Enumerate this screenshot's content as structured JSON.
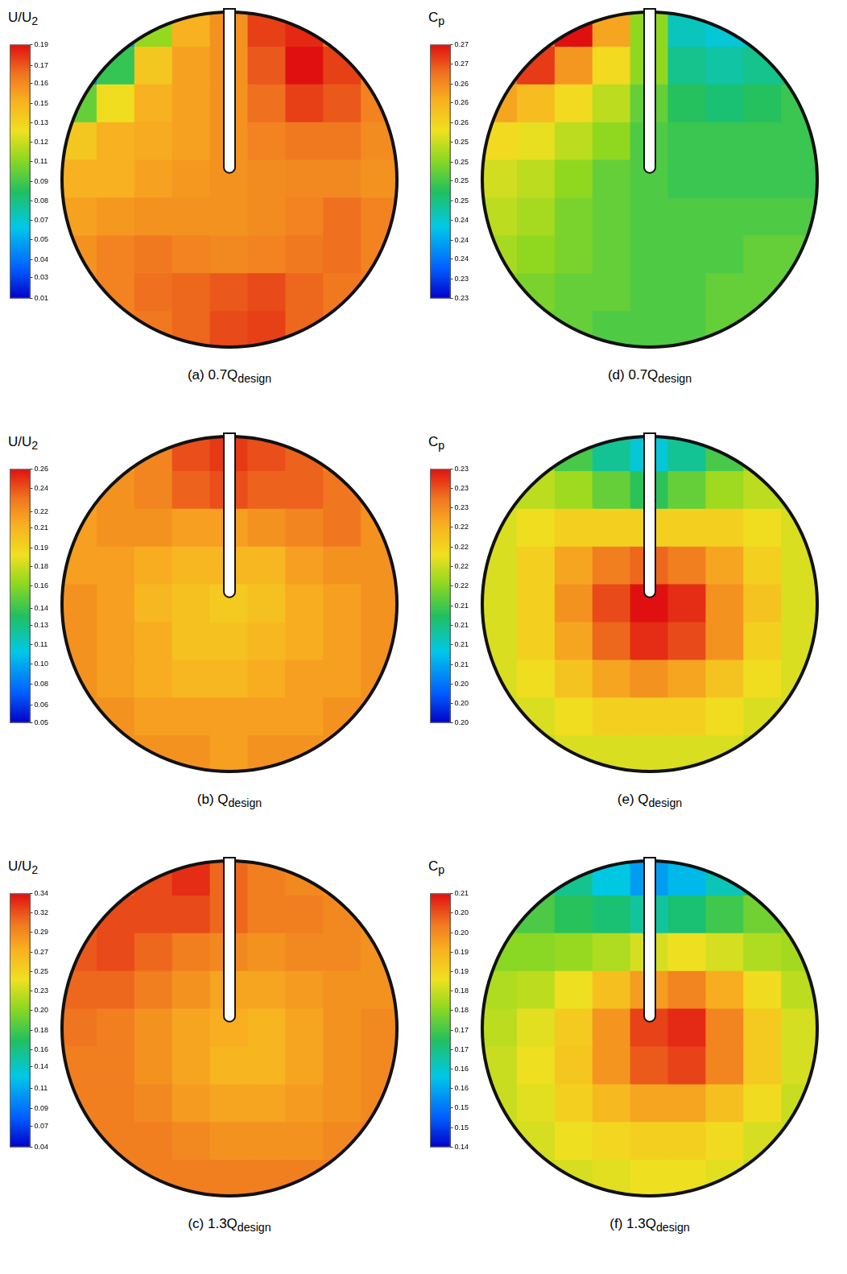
{
  "chart_data": [
    {
      "type": "heatmap",
      "caption": "(a) 0.7Q",
      "caption_subscript": "design",
      "colorbar_title": "U/U",
      "colorbar_title_subscript": "2",
      "tick_labels": false,
      "colorbar_range": [
        0.01,
        0.19
      ],
      "colorbar_ticks": [
        0.01,
        {
          "value": 0.0251,
          "label": "0.03"
        },
        {
          "value": 0.0377,
          "label": "0.04"
        },
        {
          "value": 0.0515,
          "label": "0.05"
        },
        {
          "value": 0.0654,
          "label": "0.07"
        },
        {
          "value": 0.0792,
          "label": "0.08"
        },
        {
          "value": 0.0931,
          "label": "0.09"
        },
        {
          "value": 0.1069,
          "label": "0.11"
        },
        {
          "value": 0.1208,
          "label": "0.12"
        },
        {
          "value": 0.1346,
          "label": "0.13"
        },
        {
          "value": 0.1485,
          "label": "0.15"
        },
        {
          "value": 0.1623,
          "label": "0.16"
        },
        {
          "value": 0.1749,
          "label": "0.17"
        },
        0.19
      ],
      "cells": [
        [
          null,
          0.05,
          0.11,
          0.15,
          0.16,
          0.18,
          0.185,
          0.17,
          null
        ],
        [
          0.04,
          0.09,
          0.14,
          0.155,
          0.16,
          0.175,
          0.19,
          0.18,
          0.165
        ],
        [
          0.1,
          0.13,
          0.15,
          0.155,
          0.16,
          0.17,
          0.18,
          0.175,
          0.165
        ],
        [
          0.14,
          0.15,
          0.152,
          0.155,
          0.16,
          0.165,
          0.168,
          0.168,
          0.162
        ],
        [
          0.15,
          0.15,
          0.155,
          0.158,
          0.16,
          0.162,
          0.163,
          0.163,
          0.16
        ],
        [
          0.155,
          0.158,
          0.16,
          0.16,
          0.16,
          0.162,
          0.165,
          0.17,
          0.165
        ],
        [
          0.16,
          0.165,
          0.168,
          0.165,
          0.163,
          0.165,
          0.168,
          0.17,
          0.165
        ],
        [
          0.16,
          0.165,
          0.17,
          0.172,
          0.175,
          0.178,
          0.172,
          0.168,
          0.165
        ],
        [
          null,
          0.165,
          0.168,
          0.172,
          0.178,
          0.18,
          0.172,
          0.168,
          null
        ]
      ]
    },
    {
      "type": "heatmap",
      "caption": "(b) Q",
      "caption_subscript": "design",
      "colorbar_title": "U/U",
      "colorbar_title_subscript": "2",
      "tick_labels": false,
      "colorbar_range": [
        0.05,
        0.26
      ],
      "colorbar_ticks": [
        0.05,
        {
          "value": 0.0648,
          "label": "0.06"
        },
        {
          "value": 0.0823,
          "label": "0.08"
        },
        {
          "value": 0.0985,
          "label": "0.10"
        },
        {
          "value": 0.1146,
          "label": "0.11"
        },
        {
          "value": 0.1308,
          "label": "0.13"
        },
        {
          "value": 0.1449,
          "label": "0.14"
        },
        {
          "value": 0.1631,
          "label": "0.16"
        },
        {
          "value": 0.1792,
          "label": "0.18"
        },
        {
          "value": 0.1949,
          "label": "0.19"
        },
        {
          "value": 0.2115,
          "label": "0.21"
        },
        {
          "value": 0.2249,
          "label": "0.22"
        },
        {
          "value": 0.2438,
          "label": "0.24"
        },
        0.26
      ],
      "cells": [
        [
          null,
          0.22,
          0.23,
          0.245,
          0.25,
          0.245,
          0.24,
          0.23,
          null
        ],
        [
          0.22,
          0.225,
          0.23,
          0.24,
          0.245,
          0.24,
          0.24,
          0.235,
          0.225
        ],
        [
          0.22,
          0.225,
          0.225,
          0.22,
          0.22,
          0.225,
          0.23,
          0.235,
          0.225
        ],
        [
          0.22,
          0.22,
          0.215,
          0.21,
          0.21,
          0.21,
          0.22,
          0.225,
          0.225
        ],
        [
          0.225,
          0.22,
          0.21,
          0.205,
          0.2,
          0.205,
          0.215,
          0.22,
          0.225
        ],
        [
          0.225,
          0.22,
          0.215,
          0.205,
          0.205,
          0.21,
          0.215,
          0.22,
          0.225
        ],
        [
          0.225,
          0.22,
          0.215,
          0.21,
          0.21,
          0.215,
          0.22,
          0.22,
          0.225
        ],
        [
          0.225,
          0.225,
          0.22,
          0.22,
          0.22,
          0.22,
          0.22,
          0.225,
          0.225
        ],
        [
          null,
          0.225,
          0.225,
          0.225,
          0.22,
          0.225,
          0.225,
          0.225,
          null
        ]
      ]
    },
    {
      "type": "heatmap",
      "caption": "(c) 1.3Q",
      "caption_subscript": "design",
      "colorbar_title": "U/U",
      "colorbar_title_subscript": "2",
      "tick_labels": false,
      "colorbar_range": [
        0.04,
        0.34
      ],
      "colorbar_ticks": [
        0.04,
        {
          "value": 0.0651,
          "label": "0.07"
        },
        {
          "value": 0.0862,
          "label": "0.09"
        },
        {
          "value": 0.1092,
          "label": "0.11"
        },
        {
          "value": 0.1351,
          "label": "0.14"
        },
        {
          "value": 0.1554,
          "label": "0.16"
        },
        {
          "value": 0.1785,
          "label": "0.18"
        },
        {
          "value": 0.2015,
          "label": "0.20"
        },
        {
          "value": 0.2251,
          "label": "0.23"
        },
        {
          "value": 0.2477,
          "label": "0.25"
        },
        {
          "value": 0.2708,
          "label": "0.27"
        },
        {
          "value": 0.2938,
          "label": "0.29"
        },
        {
          "value": 0.3169,
          "label": "0.32"
        },
        0.34
      ],
      "cells": [
        [
          null,
          0.31,
          0.32,
          0.33,
          0.31,
          0.3,
          0.295,
          0.29,
          null
        ],
        [
          0.31,
          0.32,
          0.32,
          0.32,
          0.31,
          0.3,
          0.3,
          0.295,
          0.29
        ],
        [
          0.315,
          0.32,
          0.31,
          0.3,
          0.295,
          0.29,
          0.295,
          0.295,
          0.29
        ],
        [
          0.31,
          0.31,
          0.3,
          0.29,
          0.28,
          0.28,
          0.285,
          0.29,
          0.29
        ],
        [
          0.305,
          0.3,
          0.29,
          0.28,
          0.275,
          0.27,
          0.28,
          0.29,
          0.295
        ],
        [
          0.3,
          0.3,
          0.29,
          0.28,
          0.27,
          0.27,
          0.28,
          0.29,
          0.295
        ],
        [
          0.3,
          0.3,
          0.295,
          0.285,
          0.28,
          0.28,
          0.285,
          0.29,
          0.295
        ],
        [
          0.3,
          0.3,
          0.3,
          0.295,
          0.29,
          0.29,
          0.29,
          0.295,
          0.3
        ],
        [
          null,
          0.3,
          0.3,
          0.3,
          0.3,
          0.3,
          0.3,
          0.3,
          null
        ]
      ]
    },
    {
      "type": "heatmap",
      "caption": "(d) 0.7Q",
      "caption_subscript": "design",
      "colorbar_title": "C",
      "colorbar_title_subscript": "p",
      "tick_labels": false,
      "colorbar_range": [
        0.23,
        0.27
      ],
      "colorbar_ticks": [
        0.23,
        {
          "value": 0.2331,
          "label": "0.23"
        },
        {
          "value": 0.2362,
          "label": "0.24"
        },
        {
          "value": 0.2392,
          "label": "0.24"
        },
        {
          "value": 0.2423,
          "label": "0.24"
        },
        {
          "value": 0.2454,
          "label": "0.25"
        },
        {
          "value": 0.2485,
          "label": "0.25"
        },
        {
          "value": 0.2515,
          "label": "0.25"
        },
        {
          "value": 0.2546,
          "label": "0.25"
        },
        {
          "value": 0.2577,
          "label": "0.26"
        },
        {
          "value": 0.2608,
          "label": "0.26"
        },
        {
          "value": 0.2638,
          "label": "0.26"
        },
        {
          "value": 0.2669,
          "label": "0.27"
        },
        0.27
      ],
      "cells": [
        [
          null,
          0.265,
          0.27,
          0.262,
          0.252,
          0.243,
          0.242,
          0.243,
          null
        ],
        [
          0.265,
          0.268,
          0.263,
          0.257,
          0.252,
          0.245,
          0.244,
          0.245,
          0.246
        ],
        [
          0.262,
          0.26,
          0.257,
          0.254,
          0.25,
          0.247,
          0.246,
          0.247,
          0.248
        ],
        [
          0.257,
          0.256,
          0.254,
          0.252,
          0.249,
          0.248,
          0.248,
          0.248,
          0.248
        ],
        [
          0.255,
          0.254,
          0.252,
          0.25,
          0.249,
          0.248,
          0.248,
          0.248,
          0.248
        ],
        [
          0.254,
          0.253,
          0.251,
          0.25,
          0.249,
          0.249,
          0.249,
          0.249,
          0.249
        ],
        [
          0.253,
          0.252,
          0.251,
          0.25,
          0.249,
          0.249,
          0.249,
          0.25,
          0.25
        ],
        [
          0.252,
          0.251,
          0.25,
          0.25,
          0.249,
          0.249,
          0.25,
          0.25,
          0.25
        ],
        [
          null,
          0.25,
          0.25,
          0.249,
          0.249,
          0.249,
          0.25,
          0.25,
          null
        ]
      ]
    },
    {
      "type": "heatmap",
      "caption": "(e) Q",
      "caption_subscript": "design",
      "colorbar_title": "C",
      "colorbar_title_subscript": "p",
      "tick_labels": false,
      "colorbar_range": [
        0.2,
        0.23
      ],
      "colorbar_ticks": [
        {
          "value": 0.2,
          "label": "0.20"
        },
        {
          "value": 0.2023,
          "label": "0.20"
        },
        {
          "value": 0.2046,
          "label": "0.20"
        },
        {
          "value": 0.2069,
          "label": "0.21"
        },
        {
          "value": 0.2092,
          "label": "0.21"
        },
        {
          "value": 0.2115,
          "label": "0.21"
        },
        {
          "value": 0.2138,
          "label": "0.21"
        },
        {
          "value": 0.2162,
          "label": "0.22"
        },
        {
          "value": 0.2185,
          "label": "0.22"
        },
        {
          "value": 0.2208,
          "label": "0.22"
        },
        {
          "value": 0.2231,
          "label": "0.22"
        },
        {
          "value": 0.2254,
          "label": "0.23"
        },
        {
          "value": 0.2277,
          "label": "0.23"
        },
        0.23
      ],
      "cells": [
        [
          null,
          0.217,
          0.214,
          0.211,
          0.209,
          0.211,
          0.214,
          0.217,
          null
        ],
        [
          0.218,
          0.218,
          0.217,
          0.215,
          0.213,
          0.215,
          0.217,
          0.218,
          0.218
        ],
        [
          0.219,
          0.22,
          0.221,
          0.221,
          0.221,
          0.221,
          0.221,
          0.22,
          0.219
        ],
        [
          0.219,
          0.221,
          0.224,
          0.226,
          0.227,
          0.226,
          0.224,
          0.221,
          0.219
        ],
        [
          0.219,
          0.221,
          0.225,
          0.228,
          0.23,
          0.229,
          0.225,
          0.222,
          0.219
        ],
        [
          0.219,
          0.221,
          0.224,
          0.227,
          0.229,
          0.228,
          0.225,
          0.221,
          0.219
        ],
        [
          0.219,
          0.22,
          0.222,
          0.224,
          0.225,
          0.224,
          0.222,
          0.22,
          0.219
        ],
        [
          0.219,
          0.219,
          0.22,
          0.221,
          0.221,
          0.221,
          0.22,
          0.219,
          0.219
        ],
        [
          null,
          0.218,
          0.219,
          0.219,
          0.219,
          0.219,
          0.219,
          0.218,
          null
        ]
      ]
    },
    {
      "type": "heatmap",
      "caption": "(f) 1.3Q",
      "caption_subscript": "design",
      "colorbar_title": "C",
      "colorbar_title_subscript": "p",
      "tick_labels": false,
      "colorbar_range": [
        0.14,
        0.21
      ],
      "colorbar_ticks": [
        0.14,
        {
          "value": 0.1454,
          "label": "0.15"
        },
        {
          "value": 0.1508,
          "label": "0.15"
        },
        {
          "value": 0.1562,
          "label": "0.16"
        },
        {
          "value": 0.1615,
          "label": "0.16"
        },
        {
          "value": 0.1669,
          "label": "0.17"
        },
        {
          "value": 0.1723,
          "label": "0.17"
        },
        {
          "value": 0.1777,
          "label": "0.18"
        },
        {
          "value": 0.1831,
          "label": "0.18"
        },
        {
          "value": 0.1885,
          "label": "0.19"
        },
        {
          "value": 0.1938,
          "label": "0.19"
        },
        {
          "value": 0.1992,
          "label": "0.20"
        },
        {
          "value": 0.2046,
          "label": "0.20"
        },
        0.21
      ],
      "cells": [
        [
          null,
          0.172,
          0.166,
          0.16,
          0.155,
          0.158,
          0.163,
          0.17,
          null
        ],
        [
          0.175,
          0.173,
          0.17,
          0.168,
          0.165,
          0.168,
          0.172,
          0.176,
          0.178
        ],
        [
          0.178,
          0.178,
          0.179,
          0.181,
          0.184,
          0.186,
          0.184,
          0.181,
          0.18
        ],
        [
          0.181,
          0.182,
          0.186,
          0.192,
          0.197,
          0.2,
          0.195,
          0.187,
          0.182
        ],
        [
          0.182,
          0.185,
          0.19,
          0.198,
          0.206,
          0.208,
          0.2,
          0.19,
          0.184
        ],
        [
          0.183,
          0.186,
          0.191,
          0.198,
          0.204,
          0.206,
          0.2,
          0.19,
          0.184
        ],
        [
          0.183,
          0.185,
          0.189,
          0.193,
          0.196,
          0.196,
          0.192,
          0.187,
          0.183
        ],
        [
          0.183,
          0.184,
          0.186,
          0.188,
          0.189,
          0.189,
          0.187,
          0.184,
          0.183
        ],
        [
          null,
          0.183,
          0.184,
          0.185,
          0.186,
          0.186,
          0.185,
          0.183,
          null
        ]
      ]
    }
  ]
}
